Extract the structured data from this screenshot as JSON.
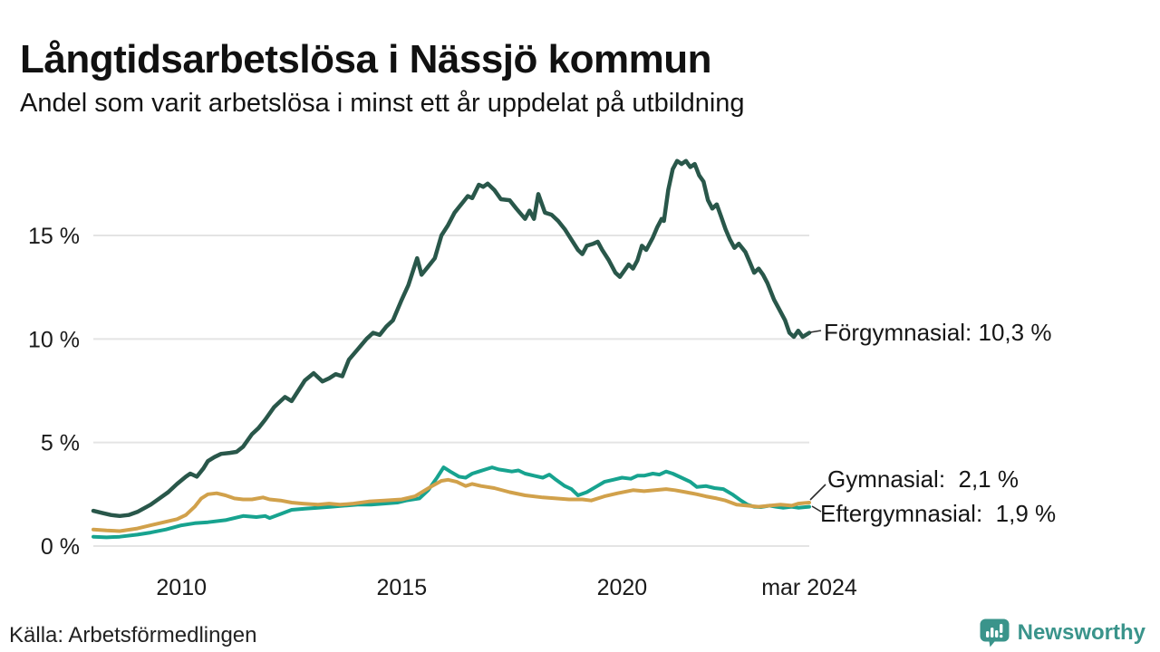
{
  "header": {
    "title": "Långtidsarbetslösa i Nässjö kommun",
    "subtitle": "Andel som varit arbetslösa i minst ett år uppdelat på utbildning"
  },
  "footer": {
    "source": "Källa: Arbetsförmedlingen",
    "brand": "Newsworthy",
    "logo_icon": "bar-chart-speech-bubble-icon"
  },
  "colors": {
    "forgymnasial_green": "#29574a",
    "gymnasial_amber": "#d1a14b",
    "eftergymnasial_teal": "#17a38f",
    "brand_teal": "#3a948b",
    "grid": "#e4e4e4",
    "leader": "#2b2b2b",
    "text": "#111111"
  },
  "chart_data": {
    "type": "line",
    "title": "Långtidsarbetslösa i Nässjö kommun",
    "subtitle": "Andel som varit arbetslösa i minst ett år uppdelat på utbildning",
    "unit": "%",
    "grid": "horizontal",
    "legend_position": "end-of-line labels, right side",
    "x_domain": [
      2008,
      2024.25
    ],
    "y_domain": [
      0,
      19
    ],
    "x_ticks": [
      {
        "value": 2010,
        "label": "2010"
      },
      {
        "value": 2015,
        "label": "2015"
      },
      {
        "value": 2020,
        "label": "2020"
      },
      {
        "value": 2024.25,
        "label": "mar 2024"
      }
    ],
    "y_ticks": [
      {
        "value": 0,
        "label": "0 %"
      },
      {
        "value": 5,
        "label": "5 %"
      },
      {
        "value": 10,
        "label": "10 %"
      },
      {
        "value": 15,
        "label": "15 %"
      }
    ],
    "series": [
      {
        "name": "Eftergymnasial",
        "color": "#17a38f",
        "end_value": 1.9,
        "label": "Eftergymnasial:  1,9 %",
        "points": [
          [
            2008.0,
            0.45
          ],
          [
            2008.3,
            0.42
          ],
          [
            2008.6,
            0.45
          ],
          [
            2009.0,
            0.55
          ],
          [
            2009.3,
            0.65
          ],
          [
            2009.65,
            0.8
          ],
          [
            2010.0,
            1.0
          ],
          [
            2010.3,
            1.1
          ],
          [
            2010.6,
            1.15
          ],
          [
            2011.0,
            1.25
          ],
          [
            2011.4,
            1.45
          ],
          [
            2011.7,
            1.4
          ],
          [
            2011.9,
            1.45
          ],
          [
            2012.0,
            1.35
          ],
          [
            2012.25,
            1.55
          ],
          [
            2012.5,
            1.75
          ],
          [
            2012.8,
            1.8
          ],
          [
            2013.1,
            1.85
          ],
          [
            2013.4,
            1.9
          ],
          [
            2013.7,
            1.95
          ],
          [
            2014.0,
            2.0
          ],
          [
            2014.3,
            2.0
          ],
          [
            2014.6,
            2.05
          ],
          [
            2014.9,
            2.1
          ],
          [
            2015.1,
            2.2
          ],
          [
            2015.4,
            2.3
          ],
          [
            2015.6,
            2.7
          ],
          [
            2015.8,
            3.3
          ],
          [
            2015.95,
            3.8
          ],
          [
            2016.1,
            3.6
          ],
          [
            2016.3,
            3.35
          ],
          [
            2016.45,
            3.3
          ],
          [
            2016.6,
            3.5
          ],
          [
            2016.75,
            3.6
          ],
          [
            2016.9,
            3.7
          ],
          [
            2017.05,
            3.8
          ],
          [
            2017.2,
            3.7
          ],
          [
            2017.35,
            3.65
          ],
          [
            2017.5,
            3.6
          ],
          [
            2017.65,
            3.65
          ],
          [
            2017.8,
            3.5
          ],
          [
            2018.0,
            3.4
          ],
          [
            2018.2,
            3.3
          ],
          [
            2018.35,
            3.45
          ],
          [
            2018.5,
            3.2
          ],
          [
            2018.7,
            2.9
          ],
          [
            2018.85,
            2.75
          ],
          [
            2019.0,
            2.45
          ],
          [
            2019.2,
            2.6
          ],
          [
            2019.4,
            2.85
          ],
          [
            2019.6,
            3.1
          ],
          [
            2019.8,
            3.2
          ],
          [
            2020.0,
            3.3
          ],
          [
            2020.2,
            3.25
          ],
          [
            2020.35,
            3.4
          ],
          [
            2020.5,
            3.4
          ],
          [
            2020.7,
            3.5
          ],
          [
            2020.85,
            3.45
          ],
          [
            2021.0,
            3.6
          ],
          [
            2021.15,
            3.5
          ],
          [
            2021.35,
            3.3
          ],
          [
            2021.55,
            3.1
          ],
          [
            2021.7,
            2.85
          ],
          [
            2021.9,
            2.9
          ],
          [
            2022.1,
            2.8
          ],
          [
            2022.3,
            2.75
          ],
          [
            2022.5,
            2.5
          ],
          [
            2022.7,
            2.2
          ],
          [
            2022.85,
            2.0
          ],
          [
            2023.0,
            1.9
          ],
          [
            2023.15,
            1.88
          ],
          [
            2023.35,
            1.95
          ],
          [
            2023.5,
            1.9
          ],
          [
            2023.65,
            1.85
          ],
          [
            2023.85,
            1.9
          ],
          [
            2024.0,
            1.85
          ],
          [
            2024.25,
            1.9
          ]
        ]
      },
      {
        "name": "Gymnasial",
        "color": "#d1a14b",
        "end_value": 2.1,
        "label": "Gymnasial:  2,1 %",
        "points": [
          [
            2008.0,
            0.8
          ],
          [
            2008.3,
            0.75
          ],
          [
            2008.6,
            0.72
          ],
          [
            2009.0,
            0.85
          ],
          [
            2009.3,
            1.0
          ],
          [
            2009.6,
            1.15
          ],
          [
            2009.9,
            1.3
          ],
          [
            2010.1,
            1.5
          ],
          [
            2010.3,
            1.9
          ],
          [
            2010.45,
            2.3
          ],
          [
            2010.6,
            2.5
          ],
          [
            2010.8,
            2.55
          ],
          [
            2011.0,
            2.45
          ],
          [
            2011.2,
            2.3
          ],
          [
            2011.4,
            2.25
          ],
          [
            2011.6,
            2.25
          ],
          [
            2011.85,
            2.35
          ],
          [
            2012.0,
            2.25
          ],
          [
            2012.25,
            2.2
          ],
          [
            2012.5,
            2.1
          ],
          [
            2012.75,
            2.05
          ],
          [
            2013.1,
            2.0
          ],
          [
            2013.35,
            2.05
          ],
          [
            2013.6,
            2.0
          ],
          [
            2013.9,
            2.05
          ],
          [
            2014.25,
            2.15
          ],
          [
            2014.6,
            2.2
          ],
          [
            2015.0,
            2.25
          ],
          [
            2015.3,
            2.4
          ],
          [
            2015.65,
            2.85
          ],
          [
            2015.9,
            3.15
          ],
          [
            2016.05,
            3.2
          ],
          [
            2016.25,
            3.1
          ],
          [
            2016.45,
            2.9
          ],
          [
            2016.6,
            3.0
          ],
          [
            2016.8,
            2.9
          ],
          [
            2017.1,
            2.8
          ],
          [
            2017.45,
            2.6
          ],
          [
            2017.8,
            2.45
          ],
          [
            2018.2,
            2.35
          ],
          [
            2018.5,
            2.3
          ],
          [
            2018.8,
            2.25
          ],
          [
            2019.1,
            2.25
          ],
          [
            2019.3,
            2.2
          ],
          [
            2019.6,
            2.4
          ],
          [
            2019.9,
            2.55
          ],
          [
            2020.25,
            2.7
          ],
          [
            2020.5,
            2.65
          ],
          [
            2020.75,
            2.7
          ],
          [
            2021.0,
            2.75
          ],
          [
            2021.2,
            2.7
          ],
          [
            2021.45,
            2.6
          ],
          [
            2021.7,
            2.5
          ],
          [
            2021.9,
            2.4
          ],
          [
            2022.15,
            2.3
          ],
          [
            2022.35,
            2.2
          ],
          [
            2022.6,
            2.0
          ],
          [
            2022.85,
            1.95
          ],
          [
            2023.1,
            1.9
          ],
          [
            2023.35,
            1.95
          ],
          [
            2023.6,
            2.0
          ],
          [
            2023.85,
            1.95
          ],
          [
            2024.0,
            2.05
          ],
          [
            2024.25,
            2.1
          ]
        ]
      },
      {
        "name": "Förgymnasial",
        "color": "#29574a",
        "end_value": 10.3,
        "label": "Förgymnasial: 10,3 %",
        "points": [
          [
            2008.0,
            1.7
          ],
          [
            2008.2,
            1.6
          ],
          [
            2008.4,
            1.5
          ],
          [
            2008.6,
            1.45
          ],
          [
            2008.8,
            1.5
          ],
          [
            2009.0,
            1.65
          ],
          [
            2009.3,
            2.0
          ],
          [
            2009.5,
            2.3
          ],
          [
            2009.7,
            2.6
          ],
          [
            2009.9,
            3.0
          ],
          [
            2010.1,
            3.35
          ],
          [
            2010.2,
            3.5
          ],
          [
            2010.35,
            3.35
          ],
          [
            2010.5,
            3.75
          ],
          [
            2010.6,
            4.1
          ],
          [
            2010.75,
            4.3
          ],
          [
            2010.9,
            4.45
          ],
          [
            2011.1,
            4.5
          ],
          [
            2011.25,
            4.55
          ],
          [
            2011.4,
            4.8
          ],
          [
            2011.6,
            5.4
          ],
          [
            2011.75,
            5.7
          ],
          [
            2011.9,
            6.1
          ],
          [
            2012.1,
            6.7
          ],
          [
            2012.25,
            7.0
          ],
          [
            2012.35,
            7.2
          ],
          [
            2012.5,
            7.0
          ],
          [
            2012.65,
            7.5
          ],
          [
            2012.8,
            8.0
          ],
          [
            2013.0,
            8.35
          ],
          [
            2013.2,
            7.95
          ],
          [
            2013.35,
            8.1
          ],
          [
            2013.5,
            8.3
          ],
          [
            2013.65,
            8.2
          ],
          [
            2013.8,
            9.0
          ],
          [
            2014.0,
            9.5
          ],
          [
            2014.2,
            10.0
          ],
          [
            2014.35,
            10.3
          ],
          [
            2014.5,
            10.2
          ],
          [
            2014.65,
            10.6
          ],
          [
            2014.8,
            10.9
          ],
          [
            2015.0,
            11.9
          ],
          [
            2015.15,
            12.6
          ],
          [
            2015.35,
            13.9
          ],
          [
            2015.45,
            13.1
          ],
          [
            2015.6,
            13.5
          ],
          [
            2015.75,
            13.9
          ],
          [
            2015.9,
            15.0
          ],
          [
            2016.05,
            15.5
          ],
          [
            2016.2,
            16.1
          ],
          [
            2016.35,
            16.5
          ],
          [
            2016.5,
            16.9
          ],
          [
            2016.6,
            16.8
          ],
          [
            2016.75,
            17.45
          ],
          [
            2016.85,
            17.35
          ],
          [
            2016.95,
            17.5
          ],
          [
            2017.1,
            17.2
          ],
          [
            2017.25,
            16.75
          ],
          [
            2017.45,
            16.7
          ],
          [
            2017.6,
            16.3
          ],
          [
            2017.8,
            15.8
          ],
          [
            2017.9,
            16.2
          ],
          [
            2018.0,
            15.8
          ],
          [
            2018.1,
            17.0
          ],
          [
            2018.25,
            16.1
          ],
          [
            2018.4,
            16.0
          ],
          [
            2018.55,
            15.7
          ],
          [
            2018.7,
            15.3
          ],
          [
            2018.85,
            14.8
          ],
          [
            2019.0,
            14.3
          ],
          [
            2019.1,
            14.1
          ],
          [
            2019.2,
            14.5
          ],
          [
            2019.35,
            14.6
          ],
          [
            2019.45,
            14.7
          ],
          [
            2019.55,
            14.3
          ],
          [
            2019.7,
            13.8
          ],
          [
            2019.85,
            13.2
          ],
          [
            2019.95,
            13.0
          ],
          [
            2020.05,
            13.3
          ],
          [
            2020.15,
            13.6
          ],
          [
            2020.25,
            13.4
          ],
          [
            2020.35,
            13.8
          ],
          [
            2020.45,
            14.5
          ],
          [
            2020.55,
            14.3
          ],
          [
            2020.7,
            14.9
          ],
          [
            2020.8,
            15.4
          ],
          [
            2020.9,
            15.8
          ],
          [
            2020.95,
            15.7
          ],
          [
            2021.05,
            17.2
          ],
          [
            2021.15,
            18.2
          ],
          [
            2021.25,
            18.6
          ],
          [
            2021.35,
            18.45
          ],
          [
            2021.45,
            18.6
          ],
          [
            2021.55,
            18.3
          ],
          [
            2021.65,
            18.45
          ],
          [
            2021.75,
            17.9
          ],
          [
            2021.85,
            17.6
          ],
          [
            2021.95,
            16.7
          ],
          [
            2022.05,
            16.3
          ],
          [
            2022.15,
            16.5
          ],
          [
            2022.25,
            15.9
          ],
          [
            2022.35,
            15.3
          ],
          [
            2022.45,
            14.8
          ],
          [
            2022.55,
            14.4
          ],
          [
            2022.65,
            14.6
          ],
          [
            2022.8,
            14.2
          ],
          [
            2022.9,
            13.7
          ],
          [
            2023.0,
            13.2
          ],
          [
            2023.1,
            13.4
          ],
          [
            2023.2,
            13.1
          ],
          [
            2023.3,
            12.7
          ],
          [
            2023.45,
            11.9
          ],
          [
            2023.55,
            11.5
          ],
          [
            2023.7,
            10.9
          ],
          [
            2023.8,
            10.3
          ],
          [
            2023.9,
            10.1
          ],
          [
            2024.0,
            10.4
          ],
          [
            2024.1,
            10.1
          ],
          [
            2024.25,
            10.3
          ]
        ]
      }
    ]
  }
}
